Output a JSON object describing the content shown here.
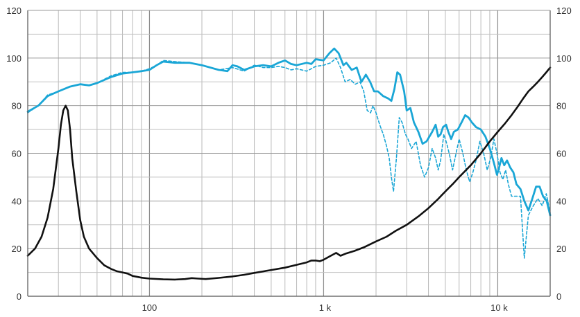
{
  "chart_data": {
    "type": "line",
    "x_scale": "log",
    "xlim": [
      20,
      20000
    ],
    "ylim": [
      0,
      120
    ],
    "grid": true,
    "x_tick_values": [
      100,
      1000,
      10000
    ],
    "x_tick_labels": [
      "100",
      "1 k",
      "10 k"
    ],
    "y_ticks": [
      0,
      20,
      40,
      60,
      80,
      100,
      120
    ],
    "y_tick_labels": [
      "0",
      "20",
      "40",
      "60",
      "80",
      "100",
      "120"
    ],
    "series": [
      {
        "color": "#1aa6d6",
        "style": "solid",
        "points": [
          [
            20,
            77.5
          ],
          [
            23,
            80
          ],
          [
            26,
            84
          ],
          [
            30,
            86
          ],
          [
            35,
            88
          ],
          [
            40,
            89
          ],
          [
            45,
            88.5
          ],
          [
            50,
            89.5
          ],
          [
            60,
            92
          ],
          [
            70,
            93.5
          ],
          [
            80,
            94
          ],
          [
            90,
            94.5
          ],
          [
            100,
            95
          ],
          [
            110,
            97
          ],
          [
            120,
            98.5
          ],
          [
            140,
            98
          ],
          [
            170,
            98
          ],
          [
            200,
            97
          ],
          [
            250,
            95
          ],
          [
            280,
            94.5
          ],
          [
            300,
            97
          ],
          [
            320,
            96.5
          ],
          [
            350,
            95
          ],
          [
            400,
            96.5
          ],
          [
            450,
            97
          ],
          [
            500,
            96.5
          ],
          [
            550,
            98
          ],
          [
            600,
            99
          ],
          [
            650,
            97.5
          ],
          [
            700,
            97
          ],
          [
            800,
            98
          ],
          [
            850,
            97.5
          ],
          [
            900,
            99.5
          ],
          [
            1000,
            99
          ],
          [
            1080,
            102
          ],
          [
            1150,
            104
          ],
          [
            1220,
            102
          ],
          [
            1300,
            97
          ],
          [
            1350,
            98
          ],
          [
            1450,
            95
          ],
          [
            1550,
            96
          ],
          [
            1650,
            90
          ],
          [
            1750,
            93
          ],
          [
            1850,
            90
          ],
          [
            1950,
            86
          ],
          [
            2050,
            86
          ],
          [
            2200,
            84
          ],
          [
            2350,
            83
          ],
          [
            2450,
            82
          ],
          [
            2550,
            87
          ],
          [
            2650,
            94
          ],
          [
            2750,
            93
          ],
          [
            2900,
            86
          ],
          [
            3000,
            78
          ],
          [
            3150,
            79
          ],
          [
            3300,
            73
          ],
          [
            3500,
            69
          ],
          [
            3700,
            64
          ],
          [
            3900,
            65
          ],
          [
            4050,
            67
          ],
          [
            4200,
            69
          ],
          [
            4400,
            72
          ],
          [
            4550,
            67
          ],
          [
            4700,
            68
          ],
          [
            4850,
            71
          ],
          [
            5050,
            72
          ],
          [
            5200,
            69
          ],
          [
            5400,
            66
          ],
          [
            5600,
            69
          ],
          [
            5900,
            70
          ],
          [
            6200,
            73
          ],
          [
            6500,
            76
          ],
          [
            6800,
            75
          ],
          [
            7100,
            73
          ],
          [
            7500,
            71
          ],
          [
            8000,
            70
          ],
          [
            8500,
            67
          ],
          [
            9000,
            62
          ],
          [
            9500,
            56
          ],
          [
            9900,
            51
          ],
          [
            10100,
            53
          ],
          [
            10500,
            58
          ],
          [
            10900,
            55
          ],
          [
            11300,
            57
          ],
          [
            11800,
            54
          ],
          [
            12300,
            52
          ],
          [
            12800,
            47
          ],
          [
            13500,
            45
          ],
          [
            14200,
            40
          ],
          [
            15000,
            36
          ],
          [
            15800,
            41
          ],
          [
            16600,
            46
          ],
          [
            17400,
            46
          ],
          [
            18200,
            42
          ],
          [
            19100,
            40
          ],
          [
            20000,
            34
          ]
        ]
      },
      {
        "color": "#1aa6d6",
        "style": "dashed",
        "points": [
          [
            20,
            77
          ],
          [
            23,
            80
          ],
          [
            26,
            84.5
          ],
          [
            30,
            86
          ],
          [
            35,
            88
          ],
          [
            40,
            89
          ],
          [
            45,
            88.5
          ],
          [
            50,
            89.5
          ],
          [
            60,
            92.5
          ],
          [
            70,
            94
          ],
          [
            80,
            94
          ],
          [
            90,
            94.5
          ],
          [
            100,
            95.5
          ],
          [
            110,
            97
          ],
          [
            120,
            99
          ],
          [
            140,
            98.5
          ],
          [
            170,
            98
          ],
          [
            200,
            97
          ],
          [
            250,
            95
          ],
          [
            300,
            96
          ],
          [
            350,
            94.5
          ],
          [
            400,
            97
          ],
          [
            450,
            96
          ],
          [
            500,
            96
          ],
          [
            550,
            96.5
          ],
          [
            600,
            96
          ],
          [
            650,
            95
          ],
          [
            700,
            95.5
          ],
          [
            800,
            94.5
          ],
          [
            900,
            96.5
          ],
          [
            1000,
            97
          ],
          [
            1100,
            98
          ],
          [
            1180,
            100
          ],
          [
            1250,
            96
          ],
          [
            1330,
            90
          ],
          [
            1420,
            91
          ],
          [
            1520,
            89
          ],
          [
            1620,
            90
          ],
          [
            1700,
            86
          ],
          [
            1780,
            78
          ],
          [
            1860,
            77
          ],
          [
            1920,
            80
          ],
          [
            2000,
            77
          ],
          [
            2100,
            72
          ],
          [
            2200,
            68
          ],
          [
            2300,
            63
          ],
          [
            2380,
            58
          ],
          [
            2450,
            50
          ],
          [
            2520,
            44
          ],
          [
            2620,
            58
          ],
          [
            2720,
            75
          ],
          [
            2820,
            73
          ],
          [
            2950,
            68
          ],
          [
            3050,
            66
          ],
          [
            3200,
            62
          ],
          [
            3400,
            65
          ],
          [
            3600,
            55
          ],
          [
            3800,
            50
          ],
          [
            4000,
            54
          ],
          [
            4200,
            62
          ],
          [
            4400,
            58
          ],
          [
            4550,
            53
          ],
          [
            4700,
            57
          ],
          [
            4900,
            68
          ],
          [
            5100,
            64
          ],
          [
            5300,
            59
          ],
          [
            5500,
            53
          ],
          [
            5800,
            61
          ],
          [
            6000,
            66
          ],
          [
            6300,
            60
          ],
          [
            6600,
            53
          ],
          [
            6900,
            48
          ],
          [
            7200,
            52
          ],
          [
            7500,
            57
          ],
          [
            7900,
            65
          ],
          [
            8300,
            60
          ],
          [
            8700,
            53
          ],
          [
            9100,
            58
          ],
          [
            9500,
            66
          ],
          [
            9900,
            60
          ],
          [
            10300,
            52
          ],
          [
            10700,
            49
          ],
          [
            11100,
            53
          ],
          [
            11500,
            47
          ],
          [
            12000,
            42
          ],
          [
            12500,
            42
          ],
          [
            13000,
            42
          ],
          [
            13500,
            42
          ],
          [
            14200,
            16
          ],
          [
            15000,
            34
          ],
          [
            16000,
            38
          ],
          [
            17000,
            41
          ],
          [
            18000,
            38
          ],
          [
            19000,
            43
          ],
          [
            20000,
            35
          ]
        ]
      },
      {
        "color": "#111111",
        "style": "solid",
        "points": [
          [
            20,
            17
          ],
          [
            22,
            20
          ],
          [
            24,
            25
          ],
          [
            26,
            33
          ],
          [
            28,
            45
          ],
          [
            30,
            62
          ],
          [
            31,
            72
          ],
          [
            32,
            78
          ],
          [
            33,
            80
          ],
          [
            34,
            78
          ],
          [
            35,
            70
          ],
          [
            36,
            58
          ],
          [
            38,
            44
          ],
          [
            40,
            32
          ],
          [
            42,
            25
          ],
          [
            45,
            20
          ],
          [
            50,
            16
          ],
          [
            55,
            13
          ],
          [
            60,
            11.5
          ],
          [
            65,
            10.5
          ],
          [
            70,
            10
          ],
          [
            75,
            9.5
          ],
          [
            80,
            8.5
          ],
          [
            90,
            7.8
          ],
          [
            100,
            7.4
          ],
          [
            120,
            7.1
          ],
          [
            140,
            7
          ],
          [
            160,
            7.2
          ],
          [
            175,
            7.6
          ],
          [
            190,
            7.4
          ],
          [
            210,
            7.2
          ],
          [
            250,
            7.7
          ],
          [
            300,
            8.3
          ],
          [
            350,
            9
          ],
          [
            400,
            9.8
          ],
          [
            500,
            11
          ],
          [
            600,
            12
          ],
          [
            700,
            13.2
          ],
          [
            800,
            14.2
          ],
          [
            850,
            15
          ],
          [
            900,
            15
          ],
          [
            950,
            14.7
          ],
          [
            1000,
            15.3
          ],
          [
            1100,
            17
          ],
          [
            1180,
            18.2
          ],
          [
            1250,
            17
          ],
          [
            1350,
            18
          ],
          [
            1500,
            19
          ],
          [
            1700,
            20.5
          ],
          [
            2000,
            23
          ],
          [
            2300,
            25
          ],
          [
            2600,
            27.5
          ],
          [
            3000,
            30
          ],
          [
            3500,
            33.5
          ],
          [
            4000,
            37
          ],
          [
            4500,
            40.5
          ],
          [
            5000,
            44
          ],
          [
            5500,
            47
          ],
          [
            6000,
            50
          ],
          [
            7000,
            55
          ],
          [
            8000,
            60
          ],
          [
            9000,
            65
          ],
          [
            10000,
            69
          ],
          [
            11000,
            72.5
          ],
          [
            12000,
            76
          ],
          [
            13000,
            79.5
          ],
          [
            14000,
            83
          ],
          [
            15000,
            86
          ],
          [
            16000,
            88
          ],
          [
            17000,
            90
          ],
          [
            18000,
            92
          ],
          [
            19000,
            94
          ],
          [
            20000,
            96
          ]
        ]
      }
    ]
  }
}
